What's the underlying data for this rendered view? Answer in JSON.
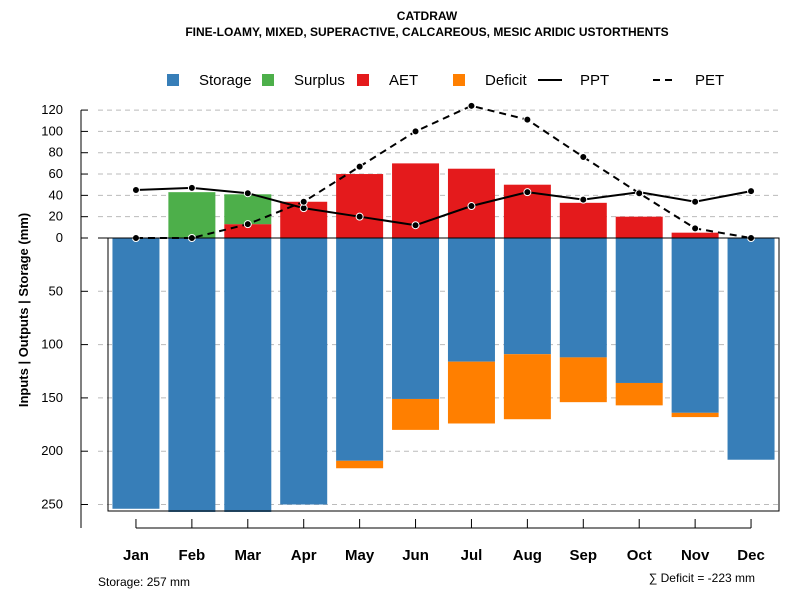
{
  "chart_data": {
    "type": "bar",
    "title": "CATDRAW",
    "subtitle": "FINE-LOAMY, MIXED, SUPERACTIVE, CALCAREOUS, MESIC ARIDIC USTORTHENTS",
    "categories": [
      "Jan",
      "Feb",
      "Mar",
      "Apr",
      "May",
      "Jun",
      "Jul",
      "Aug",
      "Sep",
      "Oct",
      "Nov",
      "Dec"
    ],
    "ylabel": "Inputs | Outputs | Storage   (mm)",
    "upper_ticks": [
      "120",
      "100",
      "80",
      "60",
      "40",
      "20",
      "0"
    ],
    "upper_tick_values": [
      120,
      100,
      80,
      60,
      40,
      20,
      0
    ],
    "lower_ticks": [
      "50",
      "100",
      "150",
      "200",
      "250"
    ],
    "lower_tick_values": [
      50,
      100,
      150,
      200,
      250
    ],
    "upper_ylim": [
      0,
      130
    ],
    "lower_ylim": [
      0,
      257
    ],
    "stacked_above": [
      {
        "name": "Surplus",
        "color": "#4daf4a",
        "values": [
          0,
          43,
          28,
          0,
          0,
          0,
          0,
          0,
          0,
          0,
          0,
          0
        ]
      },
      {
        "name": "AET",
        "color": "#e41a1c",
        "values": [
          0,
          0,
          13,
          34,
          60,
          70,
          65,
          50,
          33,
          20,
          5,
          0
        ]
      }
    ],
    "storage": {
      "name": "Storage",
      "color": "#377eb8",
      "values": [
        254,
        257,
        257,
        250,
        209,
        151,
        116,
        109,
        112,
        136,
        164,
        208
      ]
    },
    "deficit": {
      "name": "Deficit",
      "color": "#ff7f00",
      "values": [
        0,
        0,
        0,
        0,
        7,
        29,
        58,
        61,
        42,
        21,
        4,
        0
      ]
    },
    "lines": [
      {
        "name": "PPT",
        "style": "solid",
        "values": [
          45,
          47,
          42,
          28,
          20,
          12,
          30,
          43,
          36,
          43,
          34,
          44
        ]
      },
      {
        "name": "PET",
        "style": "dashed",
        "values": [
          0,
          0,
          13,
          34,
          67,
          100,
          124,
          111,
          76,
          42,
          9,
          0
        ]
      }
    ],
    "legend": [
      {
        "name": "Storage",
        "kind": "box",
        "color": "#377eb8"
      },
      {
        "name": "Surplus",
        "kind": "box",
        "color": "#4daf4a"
      },
      {
        "name": "AET",
        "kind": "box",
        "color": "#e41a1c"
      },
      {
        "name": "Deficit",
        "kind": "box",
        "color": "#ff7f00"
      },
      {
        "name": "PPT",
        "kind": "line",
        "style": "solid"
      },
      {
        "name": "PET",
        "kind": "line",
        "style": "dashed"
      }
    ],
    "storage_note": "Storage: 257 mm",
    "deficit_note": "∑ Deficit = -223 mm"
  }
}
